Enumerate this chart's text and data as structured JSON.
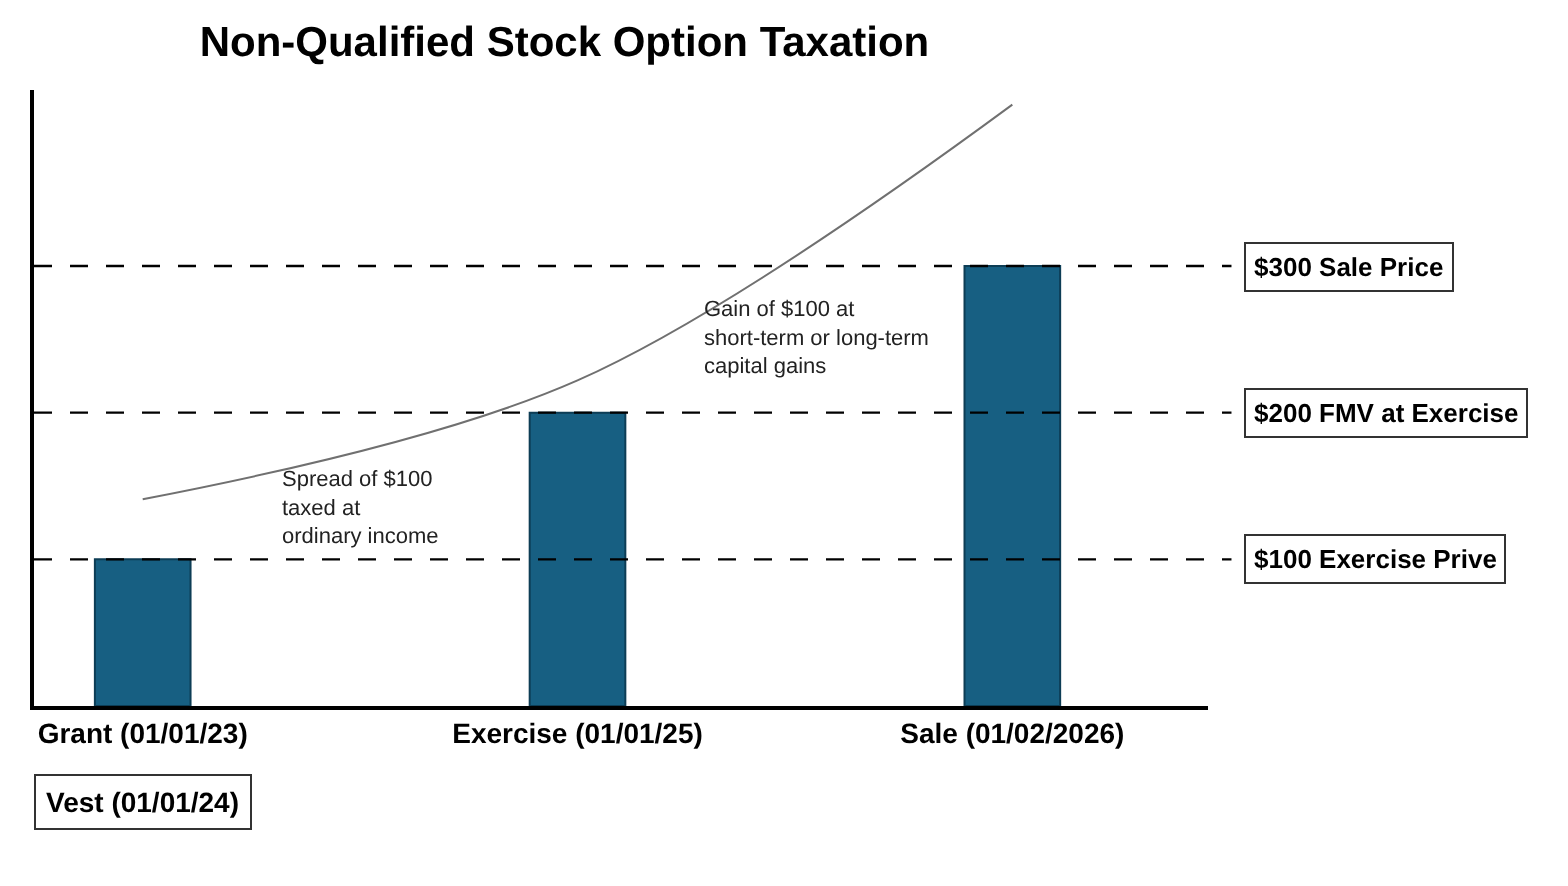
{
  "chart_data": {
    "type": "bar",
    "title": "Non-Qualified Stock Option Taxation",
    "categories": [
      "Grant (01/01/23)",
      "Exercise (01/01/25)",
      "Sale (01/02/2026)"
    ],
    "series": [
      {
        "color": "#175f82",
        "values": [
          100,
          200,
          300
        ]
      },
      {
        "type": "line",
        "color": "#707070",
        "values": [
          141,
          222,
          410
        ]
      }
    ],
    "ylim": [
      0,
      420
    ],
    "tick_labels": "x",
    "ref_lines": [
      {
        "axis": "y",
        "value": 300,
        "label": "$300 Sale Price",
        "line_style": "dashed",
        "color": "#000000"
      },
      {
        "axis": "y",
        "value": 200,
        "label": "$200 FMV at Exercise",
        "line_style": "dashed",
        "color": "#000000"
      },
      {
        "axis": "y",
        "value": 100,
        "label": "$100 Exercise Prive",
        "line_style": "dashed",
        "color": "#000000"
      }
    ],
    "annotations": [
      "Vest (01/01/24)",
      "Spread of $100 taxed at ordinary income",
      "Gain of $100 at short-term or long-term capital gains"
    ]
  }
}
